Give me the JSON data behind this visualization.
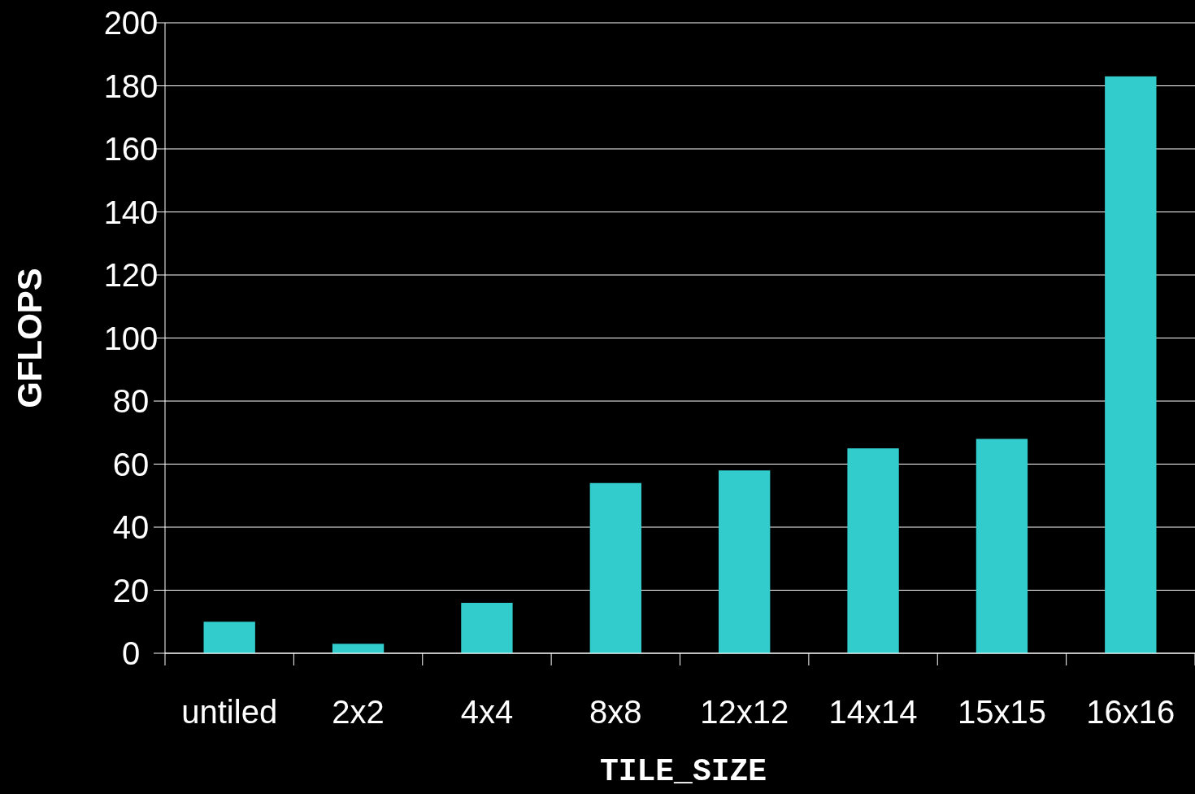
{
  "chart_data": {
    "type": "bar",
    "xlabel": "TILE_SIZE",
    "ylabel": "GFLOPS",
    "categories": [
      "untiled",
      "2x2",
      "4x4",
      "8x8",
      "12x12",
      "14x14",
      "15x15",
      "16x16"
    ],
    "values": [
      10,
      3,
      16,
      54,
      58,
      65,
      68,
      183
    ],
    "color": "#33cccc",
    "ylim": [
      0,
      200
    ],
    "yticks": [
      0,
      20,
      40,
      60,
      80,
      100,
      120,
      140,
      160,
      180,
      200
    ],
    "grid": "y"
  }
}
